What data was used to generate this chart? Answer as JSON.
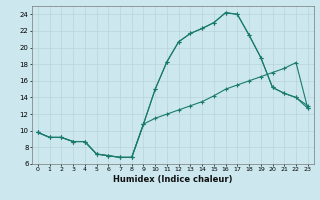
{
  "title": "",
  "xlabel": "Humidex (Indice chaleur)",
  "bg_color": "#cce8ee",
  "line_color": "#1a7a6e",
  "grid_color": "#b8d5db",
  "xlim": [
    -0.5,
    23.5
  ],
  "ylim": [
    6,
    25
  ],
  "xticks": [
    0,
    1,
    2,
    3,
    4,
    5,
    6,
    7,
    8,
    9,
    10,
    11,
    12,
    13,
    14,
    15,
    16,
    17,
    18,
    19,
    20,
    21,
    22,
    23
  ],
  "yticks": [
    6,
    8,
    10,
    12,
    14,
    16,
    18,
    20,
    22,
    24
  ],
  "line1_x": [
    0,
    1,
    2,
    3,
    4,
    5,
    6,
    7,
    8,
    9,
    10,
    11,
    12,
    13,
    14,
    15,
    16,
    17,
    18,
    19,
    20,
    21,
    22,
    23
  ],
  "line1_y": [
    9.8,
    9.2,
    9.2,
    8.7,
    8.7,
    7.2,
    7.0,
    6.8,
    6.8,
    10.8,
    15.0,
    18.3,
    20.7,
    21.7,
    22.3,
    23.0,
    24.2,
    24.0,
    21.5,
    18.8,
    15.2,
    14.5,
    14.0,
    13.0
  ],
  "line2_x": [
    0,
    1,
    2,
    3,
    4,
    5,
    6,
    7,
    8,
    9,
    10,
    11,
    12,
    13,
    14,
    15,
    16,
    17,
    18,
    19,
    20,
    21,
    22,
    23
  ],
  "line2_y": [
    9.8,
    9.2,
    9.2,
    8.7,
    8.7,
    7.2,
    7.0,
    6.8,
    6.8,
    10.8,
    11.5,
    12.0,
    12.5,
    13.0,
    13.5,
    14.2,
    15.0,
    15.5,
    16.0,
    16.5,
    17.0,
    17.5,
    18.2,
    12.7
  ],
  "line3_x": [
    0,
    1,
    2,
    3,
    4,
    5,
    6,
    7,
    8,
    9,
    10,
    11,
    12,
    13,
    14,
    15,
    16,
    17,
    18,
    19,
    20,
    21,
    22,
    23
  ],
  "line3_y": [
    9.8,
    9.2,
    9.2,
    8.7,
    8.7,
    7.2,
    7.0,
    6.8,
    6.8,
    10.8,
    15.0,
    18.3,
    20.7,
    21.7,
    22.3,
    23.0,
    24.2,
    24.0,
    21.5,
    18.8,
    15.2,
    14.5,
    14.0,
    12.7
  ]
}
